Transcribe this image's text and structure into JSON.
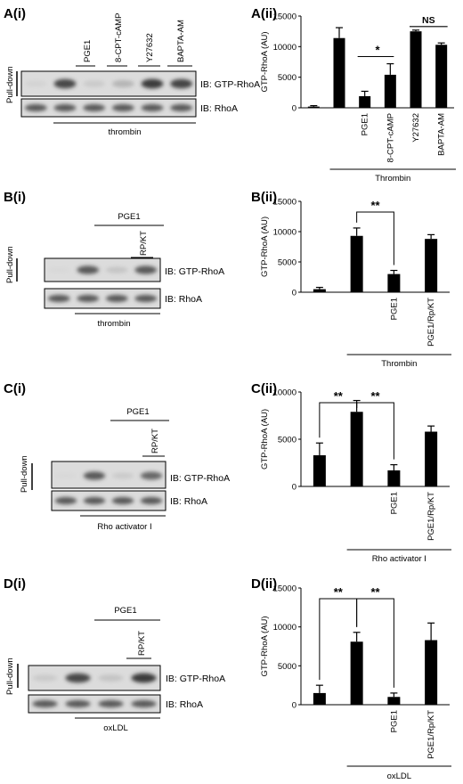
{
  "figure": {
    "A": {
      "blot_label": "A(i)",
      "chart_label": "A(ii)",
      "lane_headers": [
        "PGE1",
        "8-CPT-cAMP",
        "Y27632",
        "BAPTA-AM"
      ],
      "side_label": "Pull-down",
      "ib_top": "IB: GTP-RhoA",
      "ib_bottom": "IB: RhoA",
      "treatment": "thrombin",
      "top_band_intensities": [
        0.15,
        0.9,
        0.3,
        0.45,
        0.95,
        0.92
      ],
      "bottom_band_intensities": [
        0.85,
        0.85,
        0.85,
        0.85,
        0.85,
        0.85
      ]
    },
    "B": {
      "blot_label": "B(i)",
      "chart_label": "B(ii)",
      "group_header": "PGE1",
      "lane_headers": [
        "RP/KT"
      ],
      "side_label": "Pull-down",
      "ib_top": "IB: GTP-RhoA",
      "ib_bottom": "IB: RhoA",
      "treatment": "thrombin",
      "top_band_intensities": [
        0.05,
        0.85,
        0.35,
        0.85
      ],
      "bottom_band_intensities": [
        0.85,
        0.85,
        0.85,
        0.85
      ]
    },
    "C": {
      "blot_label": "C(i)",
      "chart_label": "C(ii)",
      "group_header": "PGE1",
      "lane_headers": [
        "RP/KT"
      ],
      "side_label": "Pull-down",
      "ib_top": "IB: GTP-RhoA",
      "ib_bottom": "IB: RhoA",
      "treatment": "Rho activator I",
      "top_band_intensities": [
        0.05,
        0.85,
        0.3,
        0.8
      ],
      "bottom_band_intensities": [
        0.85,
        0.85,
        0.85,
        0.85
      ]
    },
    "D": {
      "blot_label": "D(i)",
      "chart_label": "D(ii)",
      "group_header": "PGE1",
      "lane_headers": [
        "RP/KT"
      ],
      "side_label": "Pull-down",
      "ib_top": "IB: GTP-RhoA",
      "ib_bottom": "IB: RhoA",
      "treatment": "oxLDL",
      "top_band_intensities": [
        0.3,
        0.9,
        0.35,
        0.95
      ],
      "bottom_band_intensities": [
        0.85,
        0.85,
        0.85,
        0.85
      ]
    }
  },
  "chart_data": [
    {
      "type": "bar",
      "panel": "A(ii)",
      "ylabel": "GTP-RhoA (AU)",
      "ylim": [
        0,
        15000
      ],
      "yticks": [
        0,
        5000,
        10000,
        15000
      ],
      "categories": [
        "",
        "",
        "PGE1",
        "8-CPT-cAMP",
        "Y27632",
        "BAPTA-AM"
      ],
      "values": [
        200,
        11400,
        1900,
        5400,
        12500,
        10300
      ],
      "errors": [
        150,
        1700,
        800,
        1800,
        200,
        300
      ],
      "xgroup_label": "Thrombin",
      "significance": [
        {
          "from": 2,
          "to": 3,
          "label": "*"
        },
        {
          "from": 4,
          "to": 5,
          "label": "NS"
        }
      ]
    },
    {
      "type": "bar",
      "panel": "B(ii)",
      "ylabel": "GTP-RhoA (AU)",
      "ylim": [
        0,
        15000
      ],
      "yticks": [
        0,
        5000,
        10000,
        15000
      ],
      "categories": [
        "",
        "",
        "PGE1",
        "PGE1/Rp/KT"
      ],
      "values": [
        500,
        9300,
        3000,
        8800
      ],
      "errors": [
        300,
        1300,
        600,
        700
      ],
      "xgroup_label": "Thrombin",
      "significance": [
        {
          "from": 1,
          "to": 2,
          "label": "**"
        }
      ]
    },
    {
      "type": "bar",
      "panel": "C(ii)",
      "ylabel": "GTP-RhoA (AU)",
      "ylim": [
        0,
        10000
      ],
      "yticks": [
        0,
        5000,
        10000
      ],
      "categories": [
        "",
        "",
        "PGE1",
        "PGE1/Rp/KT"
      ],
      "values": [
        3300,
        7900,
        1700,
        5800
      ],
      "errors": [
        1300,
        1200,
        600,
        600
      ],
      "xgroup_label": "Rho activator I",
      "significance": [
        {
          "from": 0,
          "to": 1,
          "label": "**"
        },
        {
          "from": 1,
          "to": 2,
          "label": "**"
        }
      ]
    },
    {
      "type": "bar",
      "panel": "D(ii)",
      "ylabel": "GTP-RhoA (AU)",
      "ylim": [
        0,
        15000
      ],
      "yticks": [
        0,
        5000,
        10000,
        15000
      ],
      "categories": [
        "",
        "",
        "PGE1",
        "PGE1/Rp/KT"
      ],
      "values": [
        1500,
        8100,
        1000,
        8300
      ],
      "errors": [
        1000,
        1200,
        500,
        2200
      ],
      "xgroup_label": "oxLDL",
      "significance": [
        {
          "from": 0,
          "to": 1,
          "label": "**"
        },
        {
          "from": 1,
          "to": 2,
          "label": "**"
        }
      ]
    }
  ]
}
